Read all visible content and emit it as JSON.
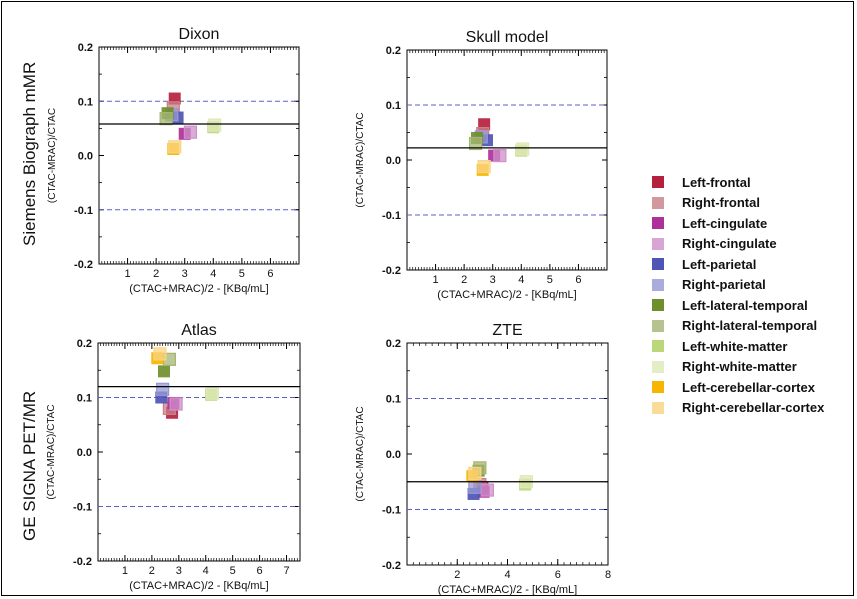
{
  "row_labels": [
    "Siemens Biograph mMR",
    "GE SIGNA PET/MR"
  ],
  "legend": [
    {
      "name": "Left-frontal",
      "color": "#b5203f",
      "fill": "solid"
    },
    {
      "name": "Right-frontal",
      "color": "#c97f87",
      "fill": "light"
    },
    {
      "name": "Left-cingulate",
      "color": "#b0309a",
      "fill": "solid"
    },
    {
      "name": "Right-cingulate",
      "color": "#cf8fca",
      "fill": "light"
    },
    {
      "name": "Left-parietal",
      "color": "#4e55b5",
      "fill": "solid"
    },
    {
      "name": "Right-parietal",
      "color": "#9599d4",
      "fill": "light"
    },
    {
      "name": "Left-lateral-temporal",
      "color": "#6f8f2c",
      "fill": "solid"
    },
    {
      "name": "Right-lateral-temporal",
      "color": "#a5b573",
      "fill": "light"
    },
    {
      "name": "Left-white-matter",
      "color": "#bcd67a",
      "fill": "solid"
    },
    {
      "name": "Right-white-matter",
      "color": "#dde9b8",
      "fill": "light"
    },
    {
      "name": "Left-cerebellar-cortex",
      "color": "#f7b500",
      "fill": "solid"
    },
    {
      "name": "Right-cerebellar-cortex",
      "color": "#f9d482",
      "fill": "light"
    }
  ],
  "chart_data": [
    {
      "type": "scatter",
      "title": "Dixon",
      "xlabel": "(CTAC+MRAC)/2 - [KBq/mL]",
      "ylabel": "(CTAC-MRAC)/CTAC",
      "xlim": [
        0,
        7
      ],
      "ylim": [
        -0.2,
        0.2
      ],
      "xticks": [
        "1",
        "2",
        "3",
        "4",
        "5",
        "6"
      ],
      "yticks": [
        "-0.2",
        "-0.1",
        "0.0",
        "0.1",
        "0.2"
      ],
      "mean_line": 0.058,
      "limit_lines": [
        0.1,
        -0.1
      ],
      "points": [
        {
          "region": "Left-frontal",
          "x": 2.65,
          "y": 0.105
        },
        {
          "region": "Right-frontal",
          "x": 2.6,
          "y": 0.088
        },
        {
          "region": "Left-cingulate",
          "x": 3.0,
          "y": 0.04
        },
        {
          "region": "Right-cingulate",
          "x": 3.2,
          "y": 0.043
        },
        {
          "region": "Left-parietal",
          "x": 2.75,
          "y": 0.07
        },
        {
          "region": "Right-parietal",
          "x": 2.55,
          "y": 0.075
        },
        {
          "region": "Left-lateral-temporal",
          "x": 2.4,
          "y": 0.078
        },
        {
          "region": "Right-lateral-temporal",
          "x": 2.35,
          "y": 0.068
        },
        {
          "region": "Left-white-matter",
          "x": 4.0,
          "y": 0.052
        },
        {
          "region": "Right-white-matter",
          "x": 4.05,
          "y": 0.056
        },
        {
          "region": "Left-cerebellar-cortex",
          "x": 2.6,
          "y": 0.012
        },
        {
          "region": "Right-cerebellar-cortex",
          "x": 2.65,
          "y": 0.016
        }
      ]
    },
    {
      "type": "scatter",
      "title": "Skull model",
      "xlabel": "(CTAC+MRAC)/2 - [KBq/mL]",
      "ylabel": "(CTAC-MRAC)/CTAC",
      "xlim": [
        0,
        7
      ],
      "ylim": [
        -0.2,
        0.2
      ],
      "xticks": [
        "1",
        "2",
        "3",
        "4",
        "5",
        "6"
      ],
      "yticks": [
        "-0.2",
        "-0.1",
        "0.0",
        "0.1",
        "0.2"
      ],
      "mean_line": 0.022,
      "limit_lines": [
        0.1,
        -0.1
      ],
      "points": [
        {
          "region": "Left-frontal",
          "x": 2.7,
          "y": 0.065
        },
        {
          "region": "Right-frontal",
          "x": 2.65,
          "y": 0.048
        },
        {
          "region": "Left-cingulate",
          "x": 3.05,
          "y": 0.008
        },
        {
          "region": "Right-cingulate",
          "x": 3.25,
          "y": 0.008
        },
        {
          "region": "Left-parietal",
          "x": 2.8,
          "y": 0.036
        },
        {
          "region": "Right-parietal",
          "x": 2.6,
          "y": 0.042
        },
        {
          "region": "Left-lateral-temporal",
          "x": 2.45,
          "y": 0.04
        },
        {
          "region": "Right-lateral-temporal",
          "x": 2.4,
          "y": 0.03
        },
        {
          "region": "Left-white-matter",
          "x": 4.0,
          "y": 0.017
        },
        {
          "region": "Right-white-matter",
          "x": 4.05,
          "y": 0.02
        },
        {
          "region": "Left-cerebellar-cortex",
          "x": 2.65,
          "y": -0.018
        },
        {
          "region": "Right-cerebellar-cortex",
          "x": 2.7,
          "y": -0.012
        }
      ]
    },
    {
      "type": "scatter",
      "title": "Atlas",
      "xlabel": "(CTAC+MRAC)/2 - [KBq/mL]",
      "ylabel": "(CTAC-MRAC)/CTAC",
      "xlim": [
        0,
        7.5
      ],
      "ylim": [
        -0.2,
        0.2
      ],
      "xticks": [
        "1",
        "2",
        "3",
        "4",
        "5",
        "6",
        "7"
      ],
      "yticks": [
        "-0.2",
        "-0.1",
        "0.0",
        "0.1",
        "0.2"
      ],
      "mean_line": 0.12,
      "limit_lines": [
        0.1,
        -0.1
      ],
      "points": [
        {
          "region": "Left-frontal",
          "x": 2.75,
          "y": 0.072
        },
        {
          "region": "Right-frontal",
          "x": 2.65,
          "y": 0.08
        },
        {
          "region": "Left-cingulate",
          "x": 2.8,
          "y": 0.09
        },
        {
          "region": "Right-cingulate",
          "x": 2.9,
          "y": 0.088
        },
        {
          "region": "Left-parietal",
          "x": 2.35,
          "y": 0.1
        },
        {
          "region": "Right-parietal",
          "x": 2.4,
          "y": 0.115
        },
        {
          "region": "Left-lateral-temporal",
          "x": 2.45,
          "y": 0.148
        },
        {
          "region": "Right-lateral-temporal",
          "x": 2.65,
          "y": 0.17
        },
        {
          "region": "Left-white-matter",
          "x": 4.2,
          "y": 0.105
        },
        {
          "region": "Right-white-matter",
          "x": 4.25,
          "y": 0.108
        },
        {
          "region": "Left-cerebellar-cortex",
          "x": 2.2,
          "y": 0.172
        },
        {
          "region": "Right-cerebellar-cortex",
          "x": 2.3,
          "y": 0.18
        }
      ]
    },
    {
      "type": "scatter",
      "title": "ZTE",
      "xlabel": "(CTAC+MRAC)/2 - [KBq/mL]",
      "ylabel": "(CTAC-MRAC)/CTAC",
      "xlim": [
        0,
        8
      ],
      "ylim": [
        -0.2,
        0.2
      ],
      "xticks": [
        "2",
        "4",
        "6",
        "8"
      ],
      "yticks": [
        "-0.2",
        "-0.1",
        "0.0",
        "0.1",
        "0.2"
      ],
      "mean_line": -0.05,
      "limit_lines": [
        0.1,
        -0.1
      ],
      "points": [
        {
          "region": "Left-frontal",
          "x": 3.0,
          "y": -0.06
        },
        {
          "region": "Right-frontal",
          "x": 2.9,
          "y": -0.055
        },
        {
          "region": "Left-cingulate",
          "x": 3.05,
          "y": -0.068
        },
        {
          "region": "Right-cingulate",
          "x": 3.2,
          "y": -0.065
        },
        {
          "region": "Left-parietal",
          "x": 2.65,
          "y": -0.072
        },
        {
          "region": "Right-parietal",
          "x": 2.7,
          "y": -0.06
        },
        {
          "region": "Left-lateral-temporal",
          "x": 2.85,
          "y": -0.03
        },
        {
          "region": "Right-lateral-temporal",
          "x": 2.9,
          "y": -0.025
        },
        {
          "region": "Left-white-matter",
          "x": 4.7,
          "y": -0.055
        },
        {
          "region": "Right-white-matter",
          "x": 4.75,
          "y": -0.05
        },
        {
          "region": "Left-cerebellar-cortex",
          "x": 2.6,
          "y": -0.04
        },
        {
          "region": "Right-cerebellar-cortex",
          "x": 2.7,
          "y": -0.035
        }
      ]
    }
  ]
}
